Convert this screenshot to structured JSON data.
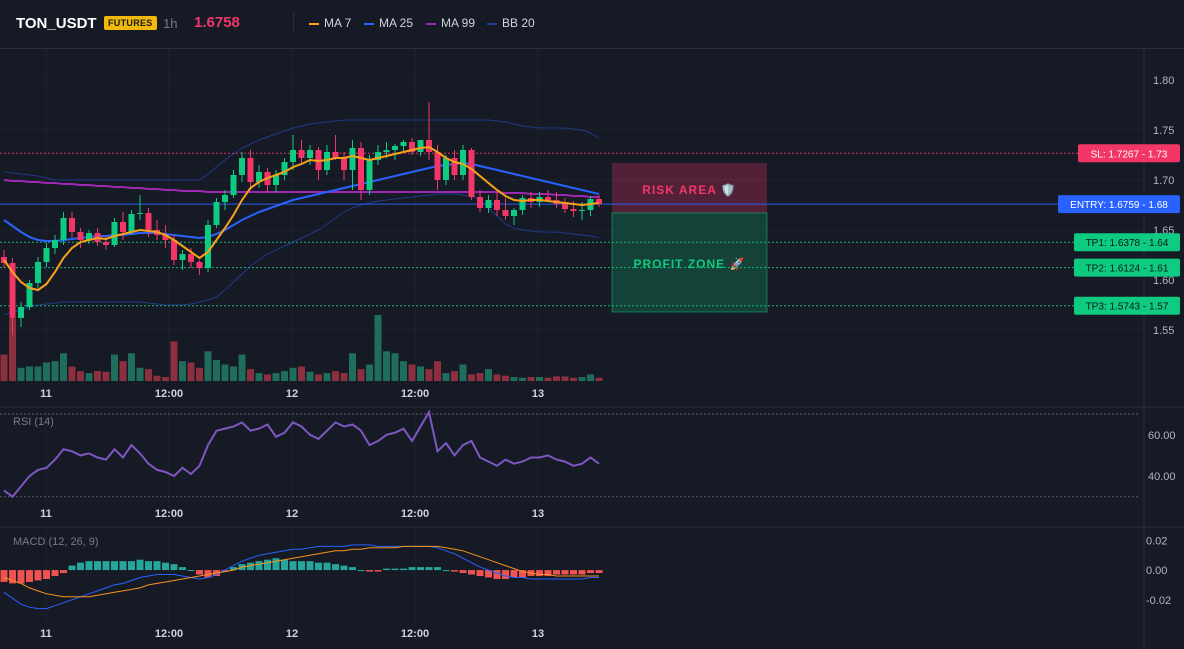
{
  "header": {
    "symbol": "TON_USDT",
    "badge": "FUTURES",
    "timeframe": "1h",
    "last_price": "1.6758",
    "legend": [
      {
        "label": "MA 7",
        "color": "#f7a21b"
      },
      {
        "label": "MA 25",
        "color": "#2962ff"
      },
      {
        "label": "MA 99",
        "color": "#9c27b0"
      },
      {
        "label": "BB 20",
        "color": "#1e3a8a"
      }
    ]
  },
  "panels": {
    "rsi_title": "RSI (14)",
    "macd_title": "MACD (12, 26, 9)"
  },
  "zones": {
    "risk_label": "RISK AREA 🛡️",
    "profit_label": "PROFIT ZONE 🚀"
  },
  "levels": [
    {
      "label": "SL: 1.7267 - 1.73",
      "value": 1.7267,
      "color": "#f23668",
      "style": "red"
    },
    {
      "label": "ENTRY: 1.6759 - 1.68",
      "value": 1.6759,
      "color": "#2962ff",
      "style": "blue"
    },
    {
      "label": "TP1: 1.6378 - 1.64",
      "value": 1.6378,
      "color": "#0ecb81",
      "style": "green"
    },
    {
      "label": "TP2: 1.6124 - 1.61",
      "value": 1.6124,
      "color": "#0ecb81",
      "style": "green"
    },
    {
      "label": "TP3: 1.5743 - 1.57",
      "value": 1.5743,
      "color": "#0ecb81",
      "style": "green"
    }
  ],
  "colors": {
    "up": "#0ecb81",
    "down": "#f23668",
    "vol_up": "#1f6e5b",
    "vol_down": "#8c2f3e",
    "rsi": "#7e57c2",
    "macd": "#2962ff",
    "signal": "#f7931a"
  },
  "chart_data": {
    "type": "candlestick",
    "x_ticks": [
      "11",
      "12:00",
      "12",
      "12:00",
      "13"
    ],
    "price_axis": {
      "ticks": [
        "1.80",
        "1.75",
        "1.70",
        "1.65",
        "1.60",
        "1.55"
      ],
      "range": [
        1.5,
        1.83
      ]
    },
    "rsi_axis": {
      "ticks": [
        "60.00",
        "40.00"
      ],
      "range": [
        26,
        72
      ],
      "guides": [
        70,
        30
      ]
    },
    "macd_axis": {
      "ticks": [
        "0.02",
        "0.00",
        "-0.02"
      ],
      "range": [
        -0.035,
        0.025
      ]
    },
    "candles": [
      [
        1.623,
        1.63,
        1.612,
        1.617
      ],
      [
        1.617,
        1.622,
        1.545,
        1.562
      ],
      [
        1.562,
        1.578,
        1.553,
        1.573
      ],
      [
        1.573,
        1.6,
        1.57,
        1.597
      ],
      [
        1.597,
        1.623,
        1.592,
        1.618
      ],
      [
        1.618,
        1.637,
        1.613,
        1.632
      ],
      [
        1.632,
        1.645,
        1.626,
        1.64
      ],
      [
        1.64,
        1.668,
        1.635,
        1.662
      ],
      [
        1.662,
        1.668,
        1.642,
        1.648
      ],
      [
        1.648,
        1.652,
        1.632,
        1.64
      ],
      [
        1.64,
        1.65,
        1.636,
        1.647
      ],
      [
        1.647,
        1.652,
        1.634,
        1.638
      ],
      [
        1.638,
        1.644,
        1.63,
        1.635
      ],
      [
        1.635,
        1.662,
        1.633,
        1.658
      ],
      [
        1.658,
        1.668,
        1.64,
        1.648
      ],
      [
        1.648,
        1.67,
        1.645,
        1.666
      ],
      [
        1.666,
        1.685,
        1.66,
        1.667
      ],
      [
        1.667,
        1.672,
        1.643,
        1.65
      ],
      [
        1.65,
        1.66,
        1.64,
        1.645
      ],
      [
        1.645,
        1.655,
        1.632,
        1.64
      ],
      [
        1.64,
        1.645,
        1.615,
        1.62
      ],
      [
        1.62,
        1.63,
        1.61,
        1.626
      ],
      [
        1.626,
        1.632,
        1.612,
        1.618
      ],
      [
        1.618,
        1.62,
        1.605,
        1.612
      ],
      [
        1.612,
        1.66,
        1.608,
        1.655
      ],
      [
        1.655,
        1.682,
        1.652,
        1.678
      ],
      [
        1.678,
        1.69,
        1.67,
        1.685
      ],
      [
        1.685,
        1.71,
        1.682,
        1.705
      ],
      [
        1.705,
        1.728,
        1.698,
        1.722
      ],
      [
        1.722,
        1.73,
        1.69,
        1.698
      ],
      [
        1.698,
        1.715,
        1.692,
        1.708
      ],
      [
        1.708,
        1.712,
        1.688,
        1.695
      ],
      [
        1.695,
        1.71,
        1.688,
        1.705
      ],
      [
        1.705,
        1.722,
        1.7,
        1.718
      ],
      [
        1.718,
        1.745,
        1.71,
        1.73
      ],
      [
        1.73,
        1.74,
        1.715,
        1.722
      ],
      [
        1.722,
        1.735,
        1.715,
        1.73
      ],
      [
        1.73,
        1.733,
        1.7,
        1.71
      ],
      [
        1.71,
        1.735,
        1.705,
        1.728
      ],
      [
        1.728,
        1.745,
        1.72,
        1.722
      ],
      [
        1.722,
        1.728,
        1.7,
        1.71
      ],
      [
        1.71,
        1.74,
        1.69,
        1.732
      ],
      [
        1.732,
        1.738,
        1.68,
        1.69
      ],
      [
        1.69,
        1.725,
        1.685,
        1.72
      ],
      [
        1.72,
        1.735,
        1.715,
        1.728
      ],
      [
        1.728,
        1.738,
        1.722,
        1.73
      ],
      [
        1.73,
        1.736,
        1.72,
        1.734
      ],
      [
        1.734,
        1.74,
        1.728,
        1.738
      ],
      [
        1.738,
        1.742,
        1.725,
        1.728
      ],
      [
        1.728,
        1.74,
        1.724,
        1.74
      ],
      [
        1.74,
        1.778,
        1.72,
        1.728
      ],
      [
        1.728,
        1.735,
        1.69,
        1.7
      ],
      [
        1.7,
        1.725,
        1.695,
        1.722
      ],
      [
        1.722,
        1.73,
        1.7,
        1.705
      ],
      [
        1.705,
        1.735,
        1.7,
        1.73
      ],
      [
        1.73,
        1.732,
        1.68,
        1.683
      ],
      [
        1.683,
        1.69,
        1.668,
        1.672
      ],
      [
        1.672,
        1.685,
        1.667,
        1.68
      ],
      [
        1.68,
        1.688,
        1.664,
        1.67
      ],
      [
        1.67,
        1.682,
        1.66,
        1.664
      ],
      [
        1.664,
        1.672,
        1.655,
        1.67
      ],
      [
        1.67,
        1.685,
        1.665,
        1.682
      ],
      [
        1.682,
        1.688,
        1.672,
        1.678
      ],
      [
        1.678,
        1.688,
        1.673,
        1.683
      ],
      [
        1.683,
        1.69,
        1.678,
        1.68
      ],
      [
        1.68,
        1.688,
        1.672,
        1.676
      ],
      [
        1.676,
        1.682,
        1.667,
        1.671
      ],
      [
        1.671,
        1.679,
        1.663,
        1.669
      ],
      [
        1.669,
        1.678,
        1.66,
        1.67
      ],
      [
        1.67,
        1.684,
        1.664,
        1.681
      ],
      [
        1.681,
        1.685,
        1.673,
        1.676
      ]
    ],
    "volume": [
      0.4,
      0.95,
      0.2,
      0.22,
      0.22,
      0.28,
      0.3,
      0.42,
      0.22,
      0.15,
      0.12,
      0.15,
      0.14,
      0.4,
      0.3,
      0.42,
      0.2,
      0.18,
      0.08,
      0.06,
      0.6,
      0.3,
      0.28,
      0.2,
      0.45,
      0.32,
      0.25,
      0.22,
      0.4,
      0.18,
      0.12,
      0.1,
      0.12,
      0.15,
      0.2,
      0.22,
      0.14,
      0.1,
      0.12,
      0.15,
      0.12,
      0.42,
      0.18,
      0.25,
      1.0,
      0.45,
      0.42,
      0.3,
      0.25,
      0.22,
      0.18,
      0.3,
      0.12,
      0.15,
      0.25,
      0.1,
      0.12,
      0.18,
      0.1,
      0.08,
      0.06,
      0.05,
      0.06,
      0.06,
      0.05,
      0.07,
      0.07,
      0.05,
      0.06,
      0.1,
      0.05
    ],
    "ma7": [
      1.62,
      1.608,
      1.598,
      1.592,
      1.59,
      1.596,
      1.608,
      1.622,
      1.632,
      1.638,
      1.64,
      1.642,
      1.641,
      1.644,
      1.646,
      1.648,
      1.65,
      1.649,
      1.648,
      1.645,
      1.64,
      1.634,
      1.628,
      1.622,
      1.628,
      1.64,
      1.652,
      1.665,
      1.68,
      1.692,
      1.698,
      1.702,
      1.705,
      1.708,
      1.713,
      1.716,
      1.72,
      1.719,
      1.72,
      1.722,
      1.722,
      1.724,
      1.722,
      1.72,
      1.722,
      1.724,
      1.726,
      1.728,
      1.73,
      1.732,
      1.733,
      1.728,
      1.722,
      1.718,
      1.716,
      1.711,
      1.704,
      1.697,
      1.69,
      1.684,
      1.68,
      1.679,
      1.68,
      1.68,
      1.679,
      1.678,
      1.677,
      1.676,
      1.675,
      1.676,
      1.677
    ],
    "ma25": [
      1.66,
      1.654,
      1.648,
      1.643,
      1.64,
      1.639,
      1.639,
      1.64,
      1.641,
      1.642,
      1.643,
      1.644,
      1.644,
      1.645,
      1.645,
      1.646,
      1.647,
      1.647,
      1.647,
      1.646,
      1.645,
      1.644,
      1.643,
      1.642,
      1.643,
      1.646,
      1.65,
      1.655,
      1.66,
      1.664,
      1.668,
      1.671,
      1.674,
      1.677,
      1.68,
      1.682,
      1.684,
      1.686,
      1.688,
      1.69,
      1.692,
      1.694,
      1.696,
      1.698,
      1.7,
      1.702,
      1.704,
      1.706,
      1.708,
      1.71,
      1.712,
      1.714,
      1.715,
      1.716,
      1.717,
      1.716,
      1.714,
      1.712,
      1.71,
      1.708,
      1.706,
      1.704,
      1.702,
      1.7,
      1.698,
      1.696,
      1.694,
      1.692,
      1.69,
      1.688,
      1.686
    ],
    "ma99": [
      1.7,
      1.699,
      1.699,
      1.698,
      1.698,
      1.697,
      1.697,
      1.696,
      1.696,
      1.695,
      1.695,
      1.694,
      1.694,
      1.693,
      1.693,
      1.692,
      1.692,
      1.691,
      1.691,
      1.69,
      1.69,
      1.689,
      1.689,
      1.689,
      1.688,
      1.688,
      1.688,
      1.688,
      1.688,
      1.688,
      1.688,
      1.688,
      1.688,
      1.688,
      1.688,
      1.688,
      1.688,
      1.688,
      1.688,
      1.688,
      1.688,
      1.688,
      1.688,
      1.688,
      1.688,
      1.688,
      1.688,
      1.688,
      1.688,
      1.688,
      1.688,
      1.688,
      1.688,
      1.688,
      1.688,
      1.688,
      1.688,
      1.688,
      1.688,
      1.687,
      1.687,
      1.687,
      1.686,
      1.686,
      1.686,
      1.685,
      1.685,
      1.684,
      1.684,
      1.683,
      1.683
    ],
    "bb_upper": [
      1.708,
      1.707,
      1.706,
      1.705,
      1.704,
      1.702,
      1.7,
      1.7,
      1.7,
      1.7,
      1.7,
      1.7,
      1.7,
      1.7,
      1.7,
      1.7,
      1.7,
      1.7,
      1.7,
      1.7,
      1.7,
      1.7,
      1.7,
      1.7,
      1.706,
      1.713,
      1.72,
      1.726,
      1.732,
      1.736,
      1.74,
      1.743,
      1.746,
      1.749,
      1.752,
      1.754,
      1.756,
      1.757,
      1.758,
      1.759,
      1.76,
      1.76,
      1.76,
      1.76,
      1.76,
      1.76,
      1.76,
      1.76,
      1.76,
      1.76,
      1.76,
      1.76,
      1.76,
      1.76,
      1.76,
      1.76,
      1.76,
      1.76,
      1.759,
      1.758,
      1.756,
      1.754,
      1.753,
      1.752,
      1.752,
      1.752,
      1.752,
      1.751,
      1.75,
      1.747,
      1.742
    ],
    "bb_lower": [
      1.565,
      1.568,
      1.57,
      1.573,
      1.575,
      1.576,
      1.577,
      1.578,
      1.578,
      1.578,
      1.578,
      1.578,
      1.578,
      1.578,
      1.578,
      1.578,
      1.578,
      1.577,
      1.576,
      1.575,
      1.575,
      1.575,
      1.576,
      1.578,
      1.58,
      1.583,
      1.59,
      1.598,
      1.606,
      1.614,
      1.62,
      1.626,
      1.63,
      1.634,
      1.638,
      1.642,
      1.646,
      1.65,
      1.656,
      1.662,
      1.668,
      1.672,
      1.675,
      1.677,
      1.679,
      1.68,
      1.681,
      1.682,
      1.683,
      1.684,
      1.685,
      1.686,
      1.686,
      1.686,
      1.685,
      1.684,
      1.68,
      1.672,
      1.664,
      1.656,
      1.652,
      1.65,
      1.649,
      1.648,
      1.648,
      1.648,
      1.647,
      1.646,
      1.645,
      1.644,
      1.642
    ],
    "rsi": [
      33,
      30,
      35,
      40,
      43,
      44,
      48,
      53,
      52,
      50,
      51,
      49,
      48,
      53,
      49,
      55,
      51,
      46,
      43,
      42,
      40,
      44,
      41,
      45,
      55,
      62,
      63,
      64,
      66,
      62,
      63,
      65,
      59,
      61,
      66,
      64,
      60,
      58,
      62,
      66,
      64,
      65,
      62,
      55,
      57,
      60,
      61,
      63,
      57,
      64,
      71,
      52,
      56,
      50,
      55,
      57,
      49,
      47,
      45,
      48,
      46,
      47,
      49,
      49,
      50,
      48,
      47,
      45,
      46,
      49,
      46
    ],
    "macd_hist": [
      -0.008,
      -0.009,
      -0.009,
      -0.008,
      -0.007,
      -0.006,
      -0.004,
      -0.002,
      0.003,
      0.005,
      0.006,
      0.006,
      0.006,
      0.006,
      0.006,
      0.006,
      0.007,
      0.006,
      0.006,
      0.005,
      0.004,
      0.002,
      0.0,
      -0.003,
      -0.005,
      -0.004,
      -0.001,
      0.002,
      0.004,
      0.005,
      0.006,
      0.007,
      0.008,
      0.007,
      0.006,
      0.006,
      0.006,
      0.005,
      0.005,
      0.004,
      0.003,
      0.002,
      0.0,
      -0.001,
      -0.001,
      0.001,
      0.001,
      0.001,
      0.002,
      0.002,
      0.002,
      0.002,
      0.0,
      -0.001,
      -0.002,
      -0.003,
      -0.004,
      -0.005,
      -0.006,
      -0.006,
      -0.005,
      -0.005,
      -0.004,
      -0.004,
      -0.004,
      -0.003,
      -0.003,
      -0.003,
      -0.003,
      -0.002,
      -0.002
    ],
    "macd_line": [
      -0.015,
      -0.019,
      -0.023,
      -0.025,
      -0.026,
      -0.026,
      -0.024,
      -0.022,
      -0.02,
      -0.018,
      -0.016,
      -0.014,
      -0.012,
      -0.01,
      -0.009,
      -0.007,
      -0.005,
      -0.004,
      -0.003,
      -0.003,
      -0.003,
      -0.004,
      -0.005,
      -0.006,
      -0.005,
      -0.003,
      0.0,
      0.003,
      0.006,
      0.008,
      0.01,
      0.011,
      0.012,
      0.013,
      0.014,
      0.014,
      0.015,
      0.016,
      0.016,
      0.016,
      0.016,
      0.017,
      0.017,
      0.017,
      0.016,
      0.016,
      0.016,
      0.016,
      0.016,
      0.016,
      0.016,
      0.015,
      0.013,
      0.011,
      0.008,
      0.005,
      0.002,
      0.0,
      -0.002,
      -0.004,
      -0.005,
      -0.005,
      -0.006,
      -0.006,
      -0.006,
      -0.006,
      -0.006,
      -0.006,
      -0.006,
      -0.005,
      -0.005
    ],
    "signal_line": [
      -0.005,
      -0.007,
      -0.009,
      -0.012,
      -0.014,
      -0.016,
      -0.017,
      -0.018,
      -0.018,
      -0.018,
      -0.018,
      -0.017,
      -0.016,
      -0.015,
      -0.014,
      -0.013,
      -0.012,
      -0.01,
      -0.009,
      -0.008,
      -0.007,
      -0.006,
      -0.005,
      -0.004,
      -0.003,
      -0.002,
      -0.001,
      0.0,
      0.002,
      0.003,
      0.004,
      0.005,
      0.006,
      0.007,
      0.008,
      0.009,
      0.01,
      0.011,
      0.012,
      0.013,
      0.013,
      0.014,
      0.014,
      0.015,
      0.015,
      0.015,
      0.015,
      0.016,
      0.016,
      0.016,
      0.016,
      0.016,
      0.015,
      0.014,
      0.013,
      0.011,
      0.009,
      0.007,
      0.005,
      0.003,
      0.001,
      -0.001,
      -0.002,
      -0.003,
      -0.003,
      -0.004,
      -0.004,
      -0.004,
      -0.004,
      -0.004,
      -0.004
    ]
  }
}
